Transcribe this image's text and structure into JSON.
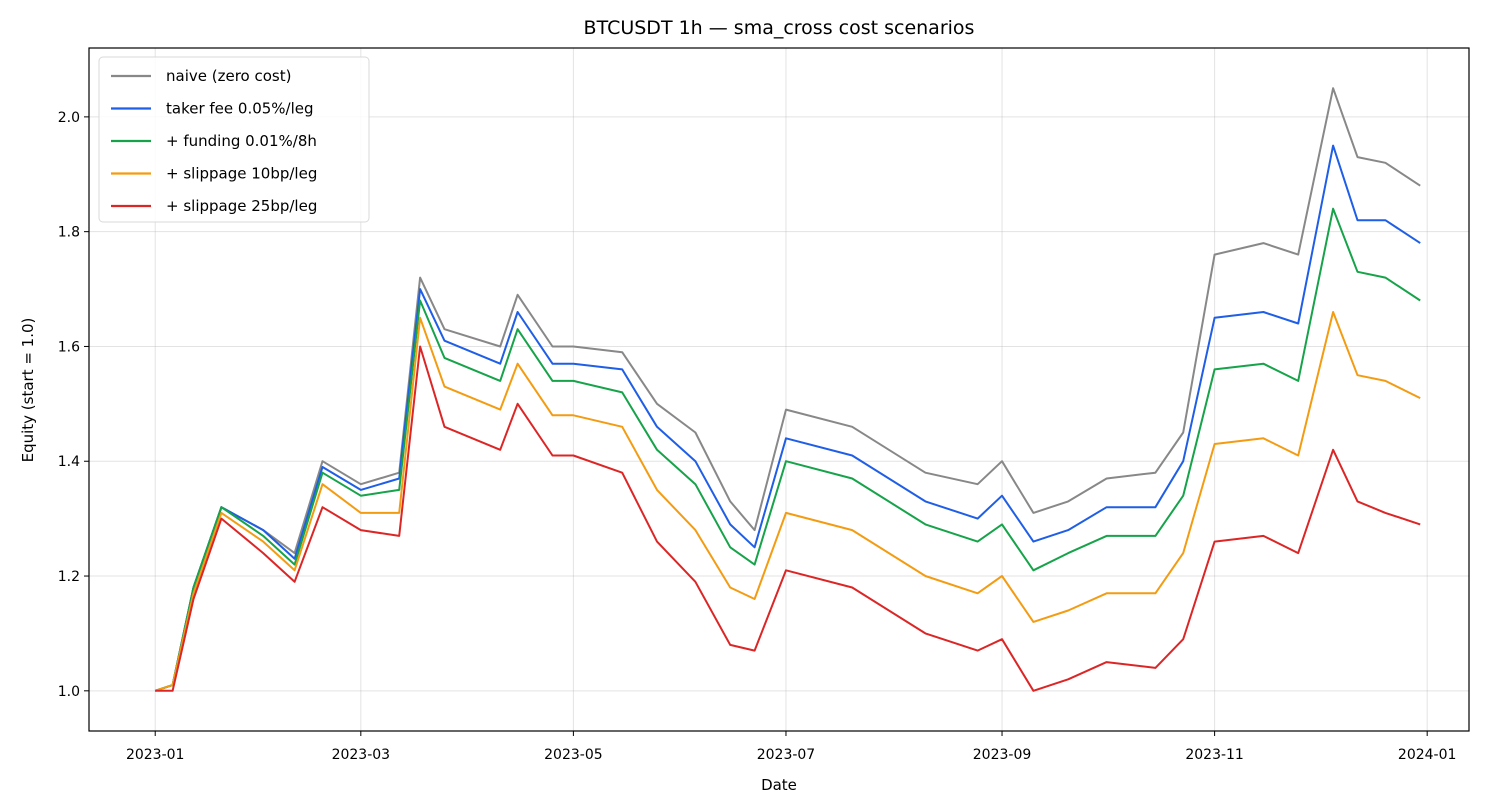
{
  "chart_data": {
    "type": "line",
    "title": "BTCUSDT 1h — sma_cross cost scenarios",
    "xlabel": "Date",
    "ylabel": "Equity (start = 1.0)",
    "x_ticks": [
      "2023-01",
      "2023-03",
      "2023-05",
      "2023-07",
      "2023-09",
      "2023-11",
      "2024-01"
    ],
    "y_ticks": [
      "1.0",
      "1.2",
      "1.4",
      "1.6",
      "1.8",
      "2.0"
    ],
    "ylim": [
      0.93,
      2.12
    ],
    "xlim": [
      "2022-12-13",
      "2024-01-13"
    ],
    "grid": true,
    "legend_position": "upper-left",
    "x": [
      "2023-01-01",
      "2023-01-06",
      "2023-01-12",
      "2023-01-20",
      "2023-02-01",
      "2023-02-10",
      "2023-02-18",
      "2023-03-01",
      "2023-03-12",
      "2023-03-18",
      "2023-03-25",
      "2023-04-10",
      "2023-04-15",
      "2023-04-25",
      "2023-05-01",
      "2023-05-15",
      "2023-05-25",
      "2023-06-05",
      "2023-06-15",
      "2023-06-22",
      "2023-07-01",
      "2023-07-20",
      "2023-08-10",
      "2023-08-25",
      "2023-09-01",
      "2023-09-10",
      "2023-09-20",
      "2023-10-01",
      "2023-10-15",
      "2023-10-23",
      "2023-11-01",
      "2023-11-15",
      "2023-11-25",
      "2023-12-05",
      "2023-12-12",
      "2023-12-20",
      "2023-12-30"
    ],
    "series": [
      {
        "name": "naive (zero cost)",
        "color": "#888888",
        "values": [
          1.0,
          1.01,
          1.18,
          1.32,
          1.28,
          1.24,
          1.4,
          1.36,
          1.38,
          1.72,
          1.63,
          1.6,
          1.69,
          1.6,
          1.6,
          1.59,
          1.5,
          1.45,
          1.33,
          1.28,
          1.49,
          1.46,
          1.38,
          1.36,
          1.4,
          1.31,
          1.33,
          1.37,
          1.38,
          1.45,
          1.76,
          1.78,
          1.76,
          2.05,
          1.93,
          1.92,
          1.88
        ]
      },
      {
        "name": "taker fee 0.05%/leg",
        "color": "#1f5ee6",
        "values": [
          1.0,
          1.01,
          1.18,
          1.32,
          1.28,
          1.23,
          1.39,
          1.35,
          1.37,
          1.7,
          1.61,
          1.57,
          1.66,
          1.57,
          1.57,
          1.56,
          1.46,
          1.4,
          1.29,
          1.25,
          1.44,
          1.41,
          1.33,
          1.3,
          1.34,
          1.26,
          1.28,
          1.32,
          1.32,
          1.4,
          1.65,
          1.66,
          1.64,
          1.95,
          1.82,
          1.82,
          1.78
        ]
      },
      {
        "name": "+ funding 0.01%/8h",
        "color": "#16a34a",
        "values": [
          1.0,
          1.01,
          1.18,
          1.32,
          1.27,
          1.22,
          1.38,
          1.34,
          1.35,
          1.68,
          1.58,
          1.54,
          1.63,
          1.54,
          1.54,
          1.52,
          1.42,
          1.36,
          1.25,
          1.22,
          1.4,
          1.37,
          1.29,
          1.26,
          1.29,
          1.21,
          1.24,
          1.27,
          1.27,
          1.34,
          1.56,
          1.57,
          1.54,
          1.84,
          1.73,
          1.72,
          1.68
        ]
      },
      {
        "name": "+ slippage 10bp/leg",
        "color": "#f39c12",
        "values": [
          1.0,
          1.01,
          1.17,
          1.31,
          1.26,
          1.21,
          1.36,
          1.31,
          1.31,
          1.65,
          1.53,
          1.49,
          1.57,
          1.48,
          1.48,
          1.46,
          1.35,
          1.28,
          1.18,
          1.16,
          1.31,
          1.28,
          1.2,
          1.17,
          1.2,
          1.12,
          1.14,
          1.17,
          1.17,
          1.24,
          1.43,
          1.44,
          1.41,
          1.66,
          1.55,
          1.54,
          1.51
        ]
      },
      {
        "name": "+ slippage 25bp/leg",
        "color": "#dc2626",
        "values": [
          1.0,
          1.0,
          1.16,
          1.3,
          1.24,
          1.19,
          1.32,
          1.28,
          1.27,
          1.6,
          1.46,
          1.42,
          1.5,
          1.41,
          1.41,
          1.38,
          1.26,
          1.19,
          1.08,
          1.07,
          1.21,
          1.18,
          1.1,
          1.07,
          1.09,
          1.0,
          1.02,
          1.05,
          1.04,
          1.09,
          1.26,
          1.27,
          1.24,
          1.42,
          1.33,
          1.31,
          1.29
        ]
      }
    ]
  }
}
